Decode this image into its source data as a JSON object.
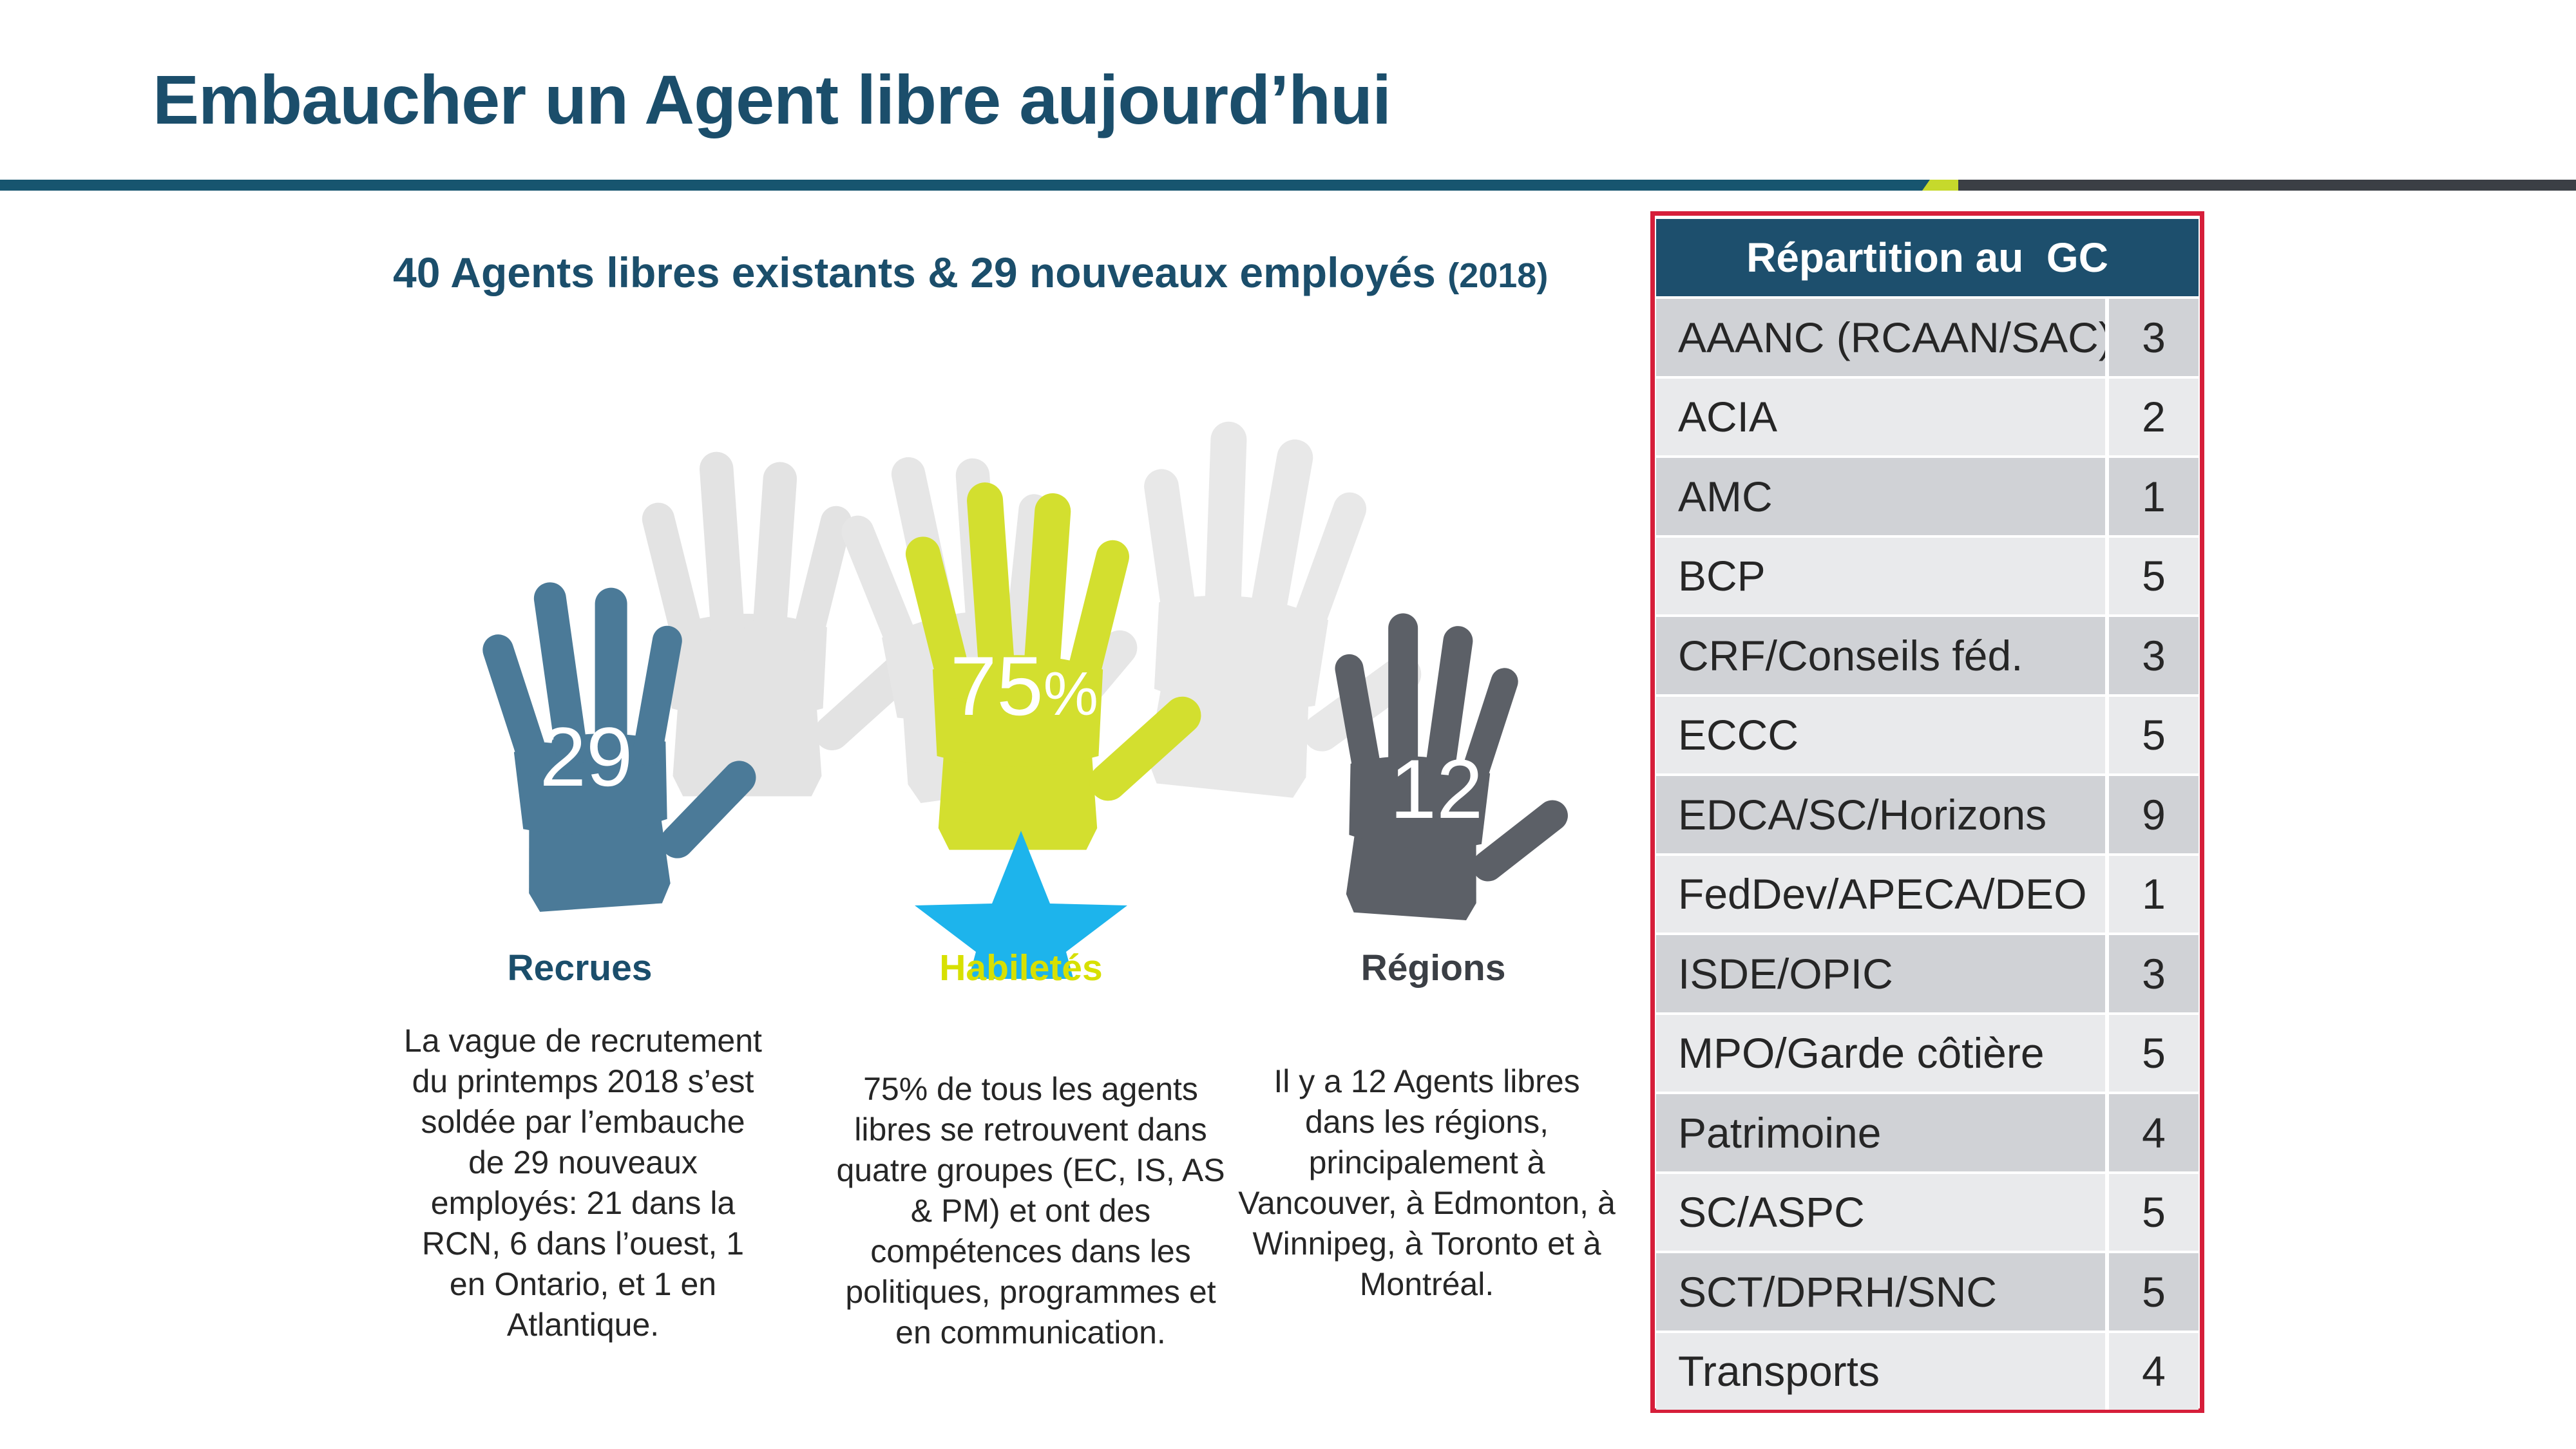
{
  "title": "Embaucher un Agent libre aujourd’hui",
  "subtitle": {
    "main": "40 Agents libres existants & 29 nouveaux employés",
    "year": "(2018)"
  },
  "colors": {
    "brand_blue": "#1b4e6b",
    "recruits_hand": "#4b7a98",
    "skills_hand": "#d3df2f",
    "regions_hand": "#5c6067",
    "star": "#1db4ec",
    "table_border": "#d61e3a"
  },
  "columns": {
    "recruits": {
      "number": "29",
      "heading": "Recrues",
      "body": "La vague de recrutement du printemps 2018 s’est soldée par l’embauche de 29 nouveaux employés: 21 dans la RCN, 6 dans l’ouest, 1 en Ontario, et 1 en Atlantique."
    },
    "skills": {
      "number": "75",
      "percent_sign": "%",
      "heading": "Habiletés",
      "body": "75% de tous les agents libres se retrouvent dans quatre groupes (EC, IS, AS & PM) et ont des compétences dans les politiques, programmes et en communication."
    },
    "regions": {
      "number": "12",
      "heading": "Régions",
      "body": "Il y a 12 Agents libres dans les régions, principalement à Vancouver, à Edmonton, à Winnipeg, à Toronto et à Montréal."
    }
  },
  "table": {
    "header": "Répartition au  GC",
    "rows": [
      {
        "name": "AAANC (RCAAN/SAC)",
        "value": "3"
      },
      {
        "name": "ACIA",
        "value": "2"
      },
      {
        "name": "AMC",
        "value": "1"
      },
      {
        "name": "BCP",
        "value": "5"
      },
      {
        "name": "CRF/Conseils féd.",
        "value": "3"
      },
      {
        "name": "ECCC",
        "value": "5"
      },
      {
        "name": "EDCA/SC/Horizons",
        "value": "9"
      },
      {
        "name": "FedDev/APECA/DEO",
        "value": "1"
      },
      {
        "name": "ISDE/OPIC",
        "value": "3"
      },
      {
        "name": "MPO/Garde côtière",
        "value": "5"
      },
      {
        "name": "Patrimoine",
        "value": "4"
      },
      {
        "name": "SC/ASPC",
        "value": "5"
      },
      {
        "name": "SCT/DPRH/SNC",
        "value": "5"
      },
      {
        "name": "Transports",
        "value": "4"
      }
    ]
  }
}
